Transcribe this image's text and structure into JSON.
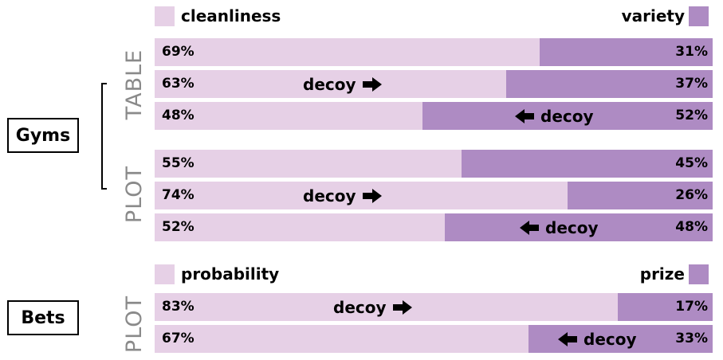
{
  "colors": {
    "left_light": "#e6d0e6",
    "right_dark": "#ae8bc3"
  },
  "gyms": {
    "group_label": "Gyms",
    "legend_left": "cleanliness",
    "legend_right": "variety",
    "section_table": "TABLE",
    "section_plot": "PLOT"
  },
  "bets": {
    "group_label": "Bets",
    "legend_left": "probability",
    "legend_right": "prize",
    "section_plot": "PLOT"
  },
  "decoy_label": "decoy",
  "chart_data": {
    "type": "bar",
    "stacked": true,
    "orientation": "horizontal",
    "rows": [
      {
        "group": "Gyms",
        "section": "TABLE",
        "left": 69,
        "right": 31,
        "decoy": null,
        "left_text": "69%",
        "right_text": "31%"
      },
      {
        "group": "Gyms",
        "section": "TABLE",
        "left": 63,
        "right": 37,
        "decoy": "right",
        "left_text": "63%",
        "right_text": "37%"
      },
      {
        "group": "Gyms",
        "section": "TABLE",
        "left": 48,
        "right": 52,
        "decoy": "left",
        "left_text": "48%",
        "right_text": "52%"
      },
      {
        "group": "Gyms",
        "section": "PLOT",
        "left": 55,
        "right": 45,
        "decoy": null,
        "left_text": "55%",
        "right_text": "45%"
      },
      {
        "group": "Gyms",
        "section": "PLOT",
        "left": 74,
        "right": 26,
        "decoy": "right",
        "left_text": "74%",
        "right_text": "26%"
      },
      {
        "group": "Gyms",
        "section": "PLOT",
        "left": 52,
        "right": 48,
        "decoy": "left",
        "left_text": "52%",
        "right_text": "48%"
      },
      {
        "group": "Bets",
        "section": "PLOT",
        "left": 83,
        "right": 17,
        "decoy": "right",
        "left_text": "83%",
        "right_text": "17%"
      },
      {
        "group": "Bets",
        "section": "PLOT",
        "left": 67,
        "right": 33,
        "decoy": "left",
        "left_text": "67%",
        "right_text": "33%"
      }
    ],
    "xlim": [
      0,
      100
    ]
  }
}
